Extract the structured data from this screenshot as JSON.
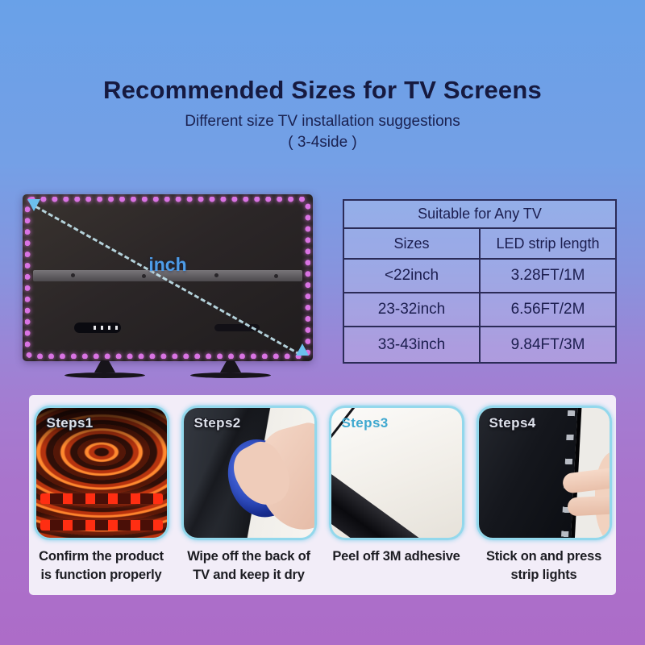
{
  "header": {
    "title": "Recommended Sizes for TV Screens",
    "subtitle": "Different size TV installation suggestions",
    "note": "( 3-4side )"
  },
  "tv_diagram": {
    "diagonal_label": "inch"
  },
  "size_table": {
    "title": "Suitable for Any TV",
    "col_size": "Sizes",
    "col_length": "LED strip length",
    "rows": [
      {
        "size": "<22inch",
        "length": "3.28FT/1M"
      },
      {
        "size": "23-32inch",
        "length": "6.56FT/2M"
      },
      {
        "size": "33-43inch",
        "length": "9.84FT/3M"
      }
    ]
  },
  "steps": [
    {
      "label": "Steps1",
      "line1": "Confirm the product",
      "line2": "is function properly"
    },
    {
      "label": "Steps2",
      "line1": "Wipe off the back of",
      "line2": "TV and keep it dry"
    },
    {
      "label": "Steps3",
      "line1": "Peel off 3M adhesive",
      "line2": ""
    },
    {
      "label": "Steps4",
      "line1": "Stick on and press",
      "line2": "strip lights"
    }
  ],
  "colors": {
    "bg_top": "#69a1e8",
    "bg_bottom": "#ad6cc8",
    "title_text": "#161a40",
    "table_border": "#2b2b57",
    "led_dot": "#d973e3",
    "arrow_blue": "#6cc0ee",
    "panel_bg": "#f2edf8",
    "card_border": "#93d8ec",
    "step_label_light": "#dde1ea",
    "step_label_teal": "#3ea8cf"
  }
}
